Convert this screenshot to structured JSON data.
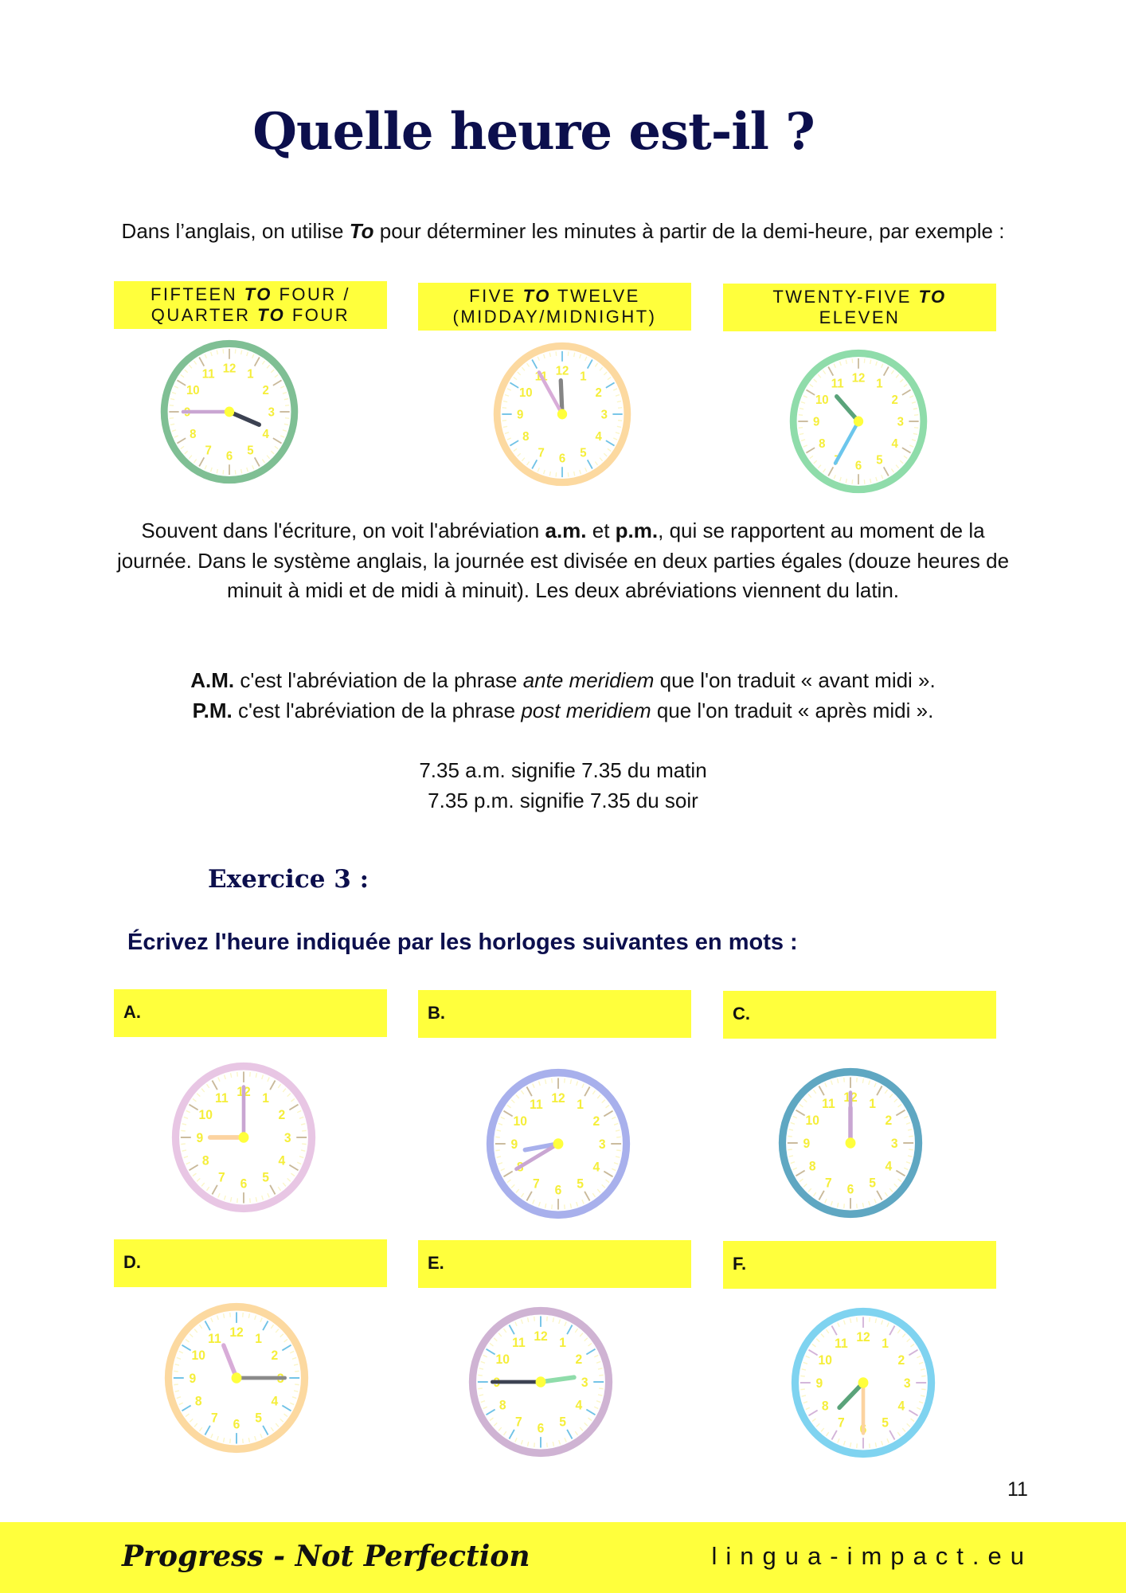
{
  "title": "Quelle heure est-il ?",
  "intro": {
    "before": "Dans l’anglais, on utilise ",
    "em": "To",
    "after": " pour déterminer les minutes à partir de la demi-heure, par exemple :"
  },
  "examples": [
    {
      "line1": [
        "FIFTEEN ",
        "TO",
        " FOUR /"
      ],
      "line2": [
        "QUARTER ",
        "TO",
        " FOUR"
      ],
      "clock": {
        "hour": 3,
        "minute": 45,
        "ring": "#7fbf94",
        "tick": "#c9b99a",
        "hour_hand": "#3c4252",
        "minute_hand": "#c9a6d2"
      }
    },
    {
      "line1": [
        "FIVE ",
        "TO",
        " TWELVE"
      ],
      "line2": [
        "(MIDDAY/MIDNIGHT)",
        "",
        ""
      ],
      "clock": {
        "hour": 11,
        "minute": 55,
        "ring": "#fcd9a0",
        "tick": "#6fc2e6",
        "hour_hand": "#858585",
        "minute_hand": "#d8acd8"
      }
    },
    {
      "line1": [
        "TWENTY-FIVE ",
        "TO",
        ""
      ],
      "line2": [
        "ELEVEN",
        "",
        ""
      ],
      "clock": {
        "hour": 10,
        "minute": 35,
        "ring": "#8fdcaa",
        "tick": "#c9b99a",
        "hour_hand": "#5aa37a",
        "minute_hand": "#6cc6ec"
      }
    }
  ],
  "ampm_para": {
    "p1": "Souvent dans l'écriture, on voit l'abréviation ",
    "b1": "a.m.",
    "p2": " et ",
    "b2": "p.m.",
    "p3": ", qui se rapportent au moment de la journée. Dans le système anglais, la journée est divisée en deux parties égales (douze heures de minuit à midi et de midi à minuit). Les deux abréviations viennent du latin."
  },
  "am_line": {
    "b": "A.M.",
    "t1": " c'est l'abréviation de la phrase ",
    "i": "ante meridiem",
    "t2": " que l'on traduit « avant midi »."
  },
  "pm_line": {
    "b": "P.M.",
    "t1": " c'est l'abréviation de la phrase ",
    "i": "post meridiem",
    "t2": " que l'on traduit « après midi »."
  },
  "examples_time": [
    "7.35 a.m. signifie 7.35 du matin",
    "7.35 p.m. signifie 7.35 du soir"
  ],
  "exercise": {
    "heading": "Exercice 3 :",
    "instruction": "Écrivez l'heure indiquée par les horloges suivantes en mots :",
    "items": [
      {
        "label": "A.",
        "answer": "",
        "clock": {
          "hour": 9,
          "minute": 0,
          "ring": "#e8c6e4",
          "tick": "#c9b99a",
          "hour_hand": "#fcd3a0",
          "minute_hand": "#c9a6d2"
        }
      },
      {
        "label": "B.",
        "answer": "",
        "clock": {
          "hour": 8,
          "minute": 40,
          "ring": "#a8b0ec",
          "tick": "#c9b99a",
          "hour_hand": "#a8b0ec",
          "minute_hand": "#c9a6d2"
        }
      },
      {
        "label": "C.",
        "answer": "",
        "clock": {
          "hour": 12,
          "minute": 0,
          "ring": "#5fa7c2",
          "tick": "#c9b99a",
          "hour_hand": "#c9a6d2",
          "minute_hand": "#c9a6d2"
        }
      },
      {
        "label": "D.",
        "answer": "",
        "clock": {
          "hour": 11,
          "minute": 15,
          "ring": "#fcd9a0",
          "tick": "#6fc2e6",
          "hour_hand": "#d8acd8",
          "minute_hand": "#8a8a8a"
        }
      },
      {
        "label": "E.",
        "answer": "",
        "clock": {
          "hour": 2,
          "minute": 45,
          "ring": "#cfb3d3",
          "tick": "#6fc2e6",
          "hour_hand": "#8fdcaa",
          "minute_hand": "#3c4252"
        }
      },
      {
        "label": "F.",
        "answer": "",
        "clock": {
          "hour": 7,
          "minute": 30,
          "ring": "#7fd3f0",
          "tick": "#d3b3d8",
          "hour_hand": "#5aa37a",
          "minute_hand": "#fcd3a0"
        }
      }
    ]
  },
  "page_number": "11",
  "footer": {
    "motto": "Progress - Not Perfection",
    "website": "lingua-impact.eu"
  },
  "colors": {
    "highlight": "#ffff3c",
    "heading": "#0c0f4d",
    "clock_numbers": "#f5ee3a"
  }
}
